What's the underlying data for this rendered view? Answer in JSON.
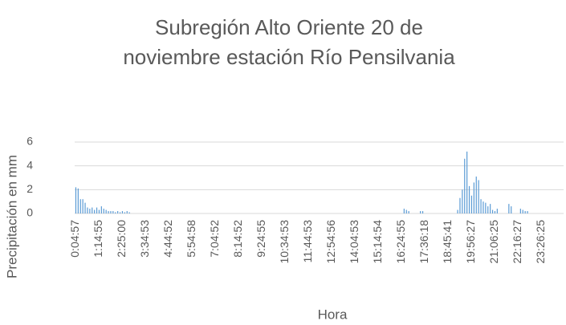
{
  "chart_data": {
    "type": "bar",
    "title": "Subregión Alto Oriente 20 de noviembre estación Río Pensilvania",
    "x_label": "Hora",
    "y_label": "Precipitación en mm",
    "color": "#5b9bd5",
    "grid": true,
    "ylim": [
      0,
      6
    ],
    "yticks": [
      0,
      2,
      4,
      6
    ],
    "categories": [
      "0:04:57",
      null,
      null,
      null,
      null,
      null,
      null,
      null,
      null,
      null,
      "1:14:55",
      null,
      null,
      null,
      null,
      null,
      null,
      null,
      null,
      null,
      "2:25:00",
      null,
      null,
      null,
      null,
      null,
      null,
      null,
      null,
      null,
      "3:34:53",
      null,
      null,
      null,
      null,
      null,
      null,
      null,
      null,
      null,
      "4:44:52",
      null,
      null,
      null,
      null,
      null,
      null,
      null,
      null,
      null,
      "5:54:58",
      null,
      null,
      null,
      null,
      null,
      null,
      null,
      null,
      null,
      "7:04:52",
      null,
      null,
      null,
      null,
      null,
      null,
      null,
      null,
      null,
      "8:14:52",
      null,
      null,
      null,
      null,
      null,
      null,
      null,
      null,
      null,
      "9:24:55",
      null,
      null,
      null,
      null,
      null,
      null,
      null,
      null,
      null,
      "10:34:53",
      null,
      null,
      null,
      null,
      null,
      null,
      null,
      null,
      null,
      "11:44:53",
      null,
      null,
      null,
      null,
      null,
      null,
      null,
      null,
      null,
      "12:54:56",
      null,
      null,
      null,
      null,
      null,
      null,
      null,
      null,
      null,
      "14:04:53",
      null,
      null,
      null,
      null,
      null,
      null,
      null,
      null,
      null,
      "15:14:54",
      null,
      null,
      null,
      null,
      null,
      null,
      null,
      null,
      null,
      "16:24:55",
      null,
      null,
      null,
      null,
      null,
      null,
      null,
      null,
      null,
      "17:36:18",
      null,
      null,
      null,
      null,
      null,
      null,
      null,
      null,
      null,
      "18:45:41",
      null,
      null,
      null,
      null,
      null,
      null,
      null,
      null,
      null,
      "19:56:27",
      null,
      null,
      null,
      null,
      null,
      null,
      null,
      null,
      null,
      "21:06:25",
      null,
      null,
      null,
      null,
      null,
      null,
      null,
      null,
      null,
      "22:16:27",
      null,
      null,
      null,
      null,
      null,
      null,
      null,
      null,
      null,
      "23:26:25",
      null,
      null,
      null,
      null,
      null,
      null,
      null,
      null,
      null
    ],
    "values": [
      2.2,
      2.1,
      1.2,
      1.2,
      0.9,
      0.5,
      0.4,
      0.5,
      0.3,
      0.5,
      0.3,
      0.6,
      0.4,
      0.3,
      0.2,
      0.2,
      0.2,
      0.1,
      0.2,
      0.1,
      0.2,
      0.1,
      0.2,
      0.1,
      0,
      0,
      0,
      0,
      0,
      0,
      0,
      0,
      0,
      0,
      0,
      0,
      0,
      0,
      0,
      0,
      0,
      0,
      0,
      0,
      0,
      0,
      0,
      0,
      0,
      0,
      0,
      0,
      0,
      0,
      0,
      0,
      0,
      0,
      0,
      0,
      0,
      0,
      0,
      0,
      0,
      0,
      0,
      0,
      0,
      0,
      0,
      0,
      0,
      0,
      0,
      0,
      0,
      0,
      0,
      0,
      0,
      0,
      0,
      0,
      0,
      0,
      0,
      0,
      0,
      0,
      0,
      0,
      0,
      0,
      0,
      0,
      0,
      0,
      0,
      0,
      0,
      0,
      0,
      0,
      0,
      0,
      0,
      0,
      0,
      0,
      0,
      0,
      0,
      0,
      0,
      0,
      0,
      0,
      0,
      0,
      0,
      0,
      0,
      0,
      0,
      0,
      0,
      0,
      0,
      0,
      0,
      0,
      0,
      0,
      0,
      0,
      0,
      0,
      0,
      0,
      0,
      0.4,
      0.3,
      0.2,
      0,
      0,
      0,
      0,
      0.2,
      0.2,
      0,
      0,
      0,
      0,
      0,
      0,
      0,
      0,
      0,
      0,
      0,
      0,
      0,
      0,
      0.3,
      1.3,
      2.0,
      4.6,
      5.2,
      2.3,
      1.5,
      2.6,
      3.1,
      2.8,
      1.2,
      1.0,
      0.9,
      0.6,
      0.8,
      0.3,
      0.2,
      0.4,
      0,
      0,
      0,
      0,
      0.8,
      0.6,
      0,
      0,
      0,
      0.4,
      0.3,
      0.2,
      0.2,
      0,
      0,
      0,
      0,
      0,
      0,
      0,
      0,
      0,
      0,
      0,
      0,
      0,
      0,
      0
    ]
  }
}
